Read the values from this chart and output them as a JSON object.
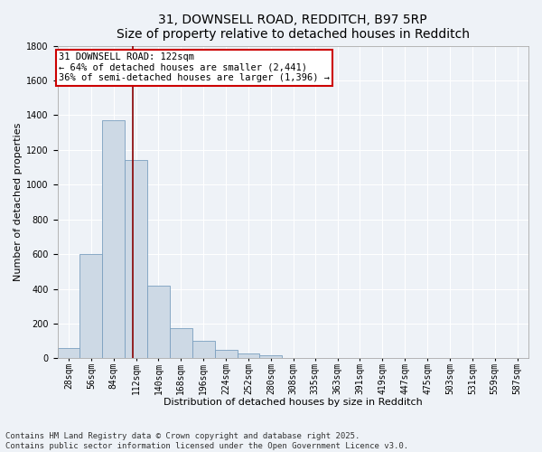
{
  "title_line1": "31, DOWNSELL ROAD, REDDITCH, B97 5RP",
  "title_line2": "Size of property relative to detached houses in Redditch",
  "xlabel": "Distribution of detached houses by size in Redditch",
  "ylabel": "Number of detached properties",
  "bar_color": "#cdd9e5",
  "bar_edge_color": "#7a9fbf",
  "background_color": "#eef2f7",
  "grid_color": "#ffffff",
  "bins_left": [
    28,
    56,
    84,
    112,
    140,
    168,
    196,
    224,
    252,
    280,
    308,
    335,
    363,
    391,
    419,
    447,
    475,
    503,
    531,
    559,
    587
  ],
  "bin_width": 28,
  "bin_labels": [
    "28sqm",
    "56sqm",
    "84sqm",
    "112sqm",
    "140sqm",
    "168sqm",
    "196sqm",
    "224sqm",
    "252sqm",
    "280sqm",
    "308sqm",
    "335sqm",
    "363sqm",
    "391sqm",
    "419sqm",
    "447sqm",
    "475sqm",
    "503sqm",
    "531sqm",
    "559sqm",
    "587sqm"
  ],
  "values": [
    60,
    600,
    1370,
    1140,
    420,
    175,
    100,
    50,
    30,
    20,
    0,
    0,
    0,
    0,
    0,
    0,
    0,
    0,
    0,
    0,
    0
  ],
  "property_line_x": 122,
  "annotation_title": "31 DOWNSELL ROAD: 122sqm",
  "annotation_line1": "← 64% of detached houses are smaller (2,441)",
  "annotation_line2": "36% of semi-detached houses are larger (1,396) →",
  "annotation_box_color": "#ffffff",
  "annotation_box_edge": "#cc0000",
  "vline_color": "#880000",
  "ylim": [
    0,
    1800
  ],
  "yticks": [
    0,
    200,
    400,
    600,
    800,
    1000,
    1200,
    1400,
    1600,
    1800
  ],
  "footnote1": "Contains HM Land Registry data © Crown copyright and database right 2025.",
  "footnote2": "Contains public sector information licensed under the Open Government Licence v3.0.",
  "title_fontsize": 10,
  "axis_label_fontsize": 8,
  "tick_fontsize": 7,
  "annotation_fontsize": 7.5,
  "footnote_fontsize": 6.5
}
